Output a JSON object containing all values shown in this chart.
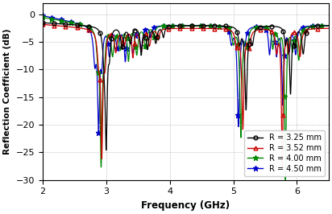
{
  "xlabel": "Frequency (GHz)",
  "ylabel": "Reflection Coefficient (dB)",
  "xlim": [
    2,
    6.5
  ],
  "ylim": [
    -30,
    2
  ],
  "xticks": [
    2,
    3,
    4,
    5,
    6
  ],
  "yticks": [
    0,
    -5,
    -10,
    -15,
    -20,
    -25,
    -30
  ],
  "legend_labels": [
    "R = 3.25 mm",
    "R = 3.52 mm",
    "R = 4.00 mm",
    "R = 4.50 mm"
  ],
  "colors": [
    "#000000",
    "#cc0000",
    "#008800",
    "#0000cc"
  ],
  "linewidth": 0.9,
  "figsize": [
    4.12,
    2.66
  ],
  "dpi": 100
}
